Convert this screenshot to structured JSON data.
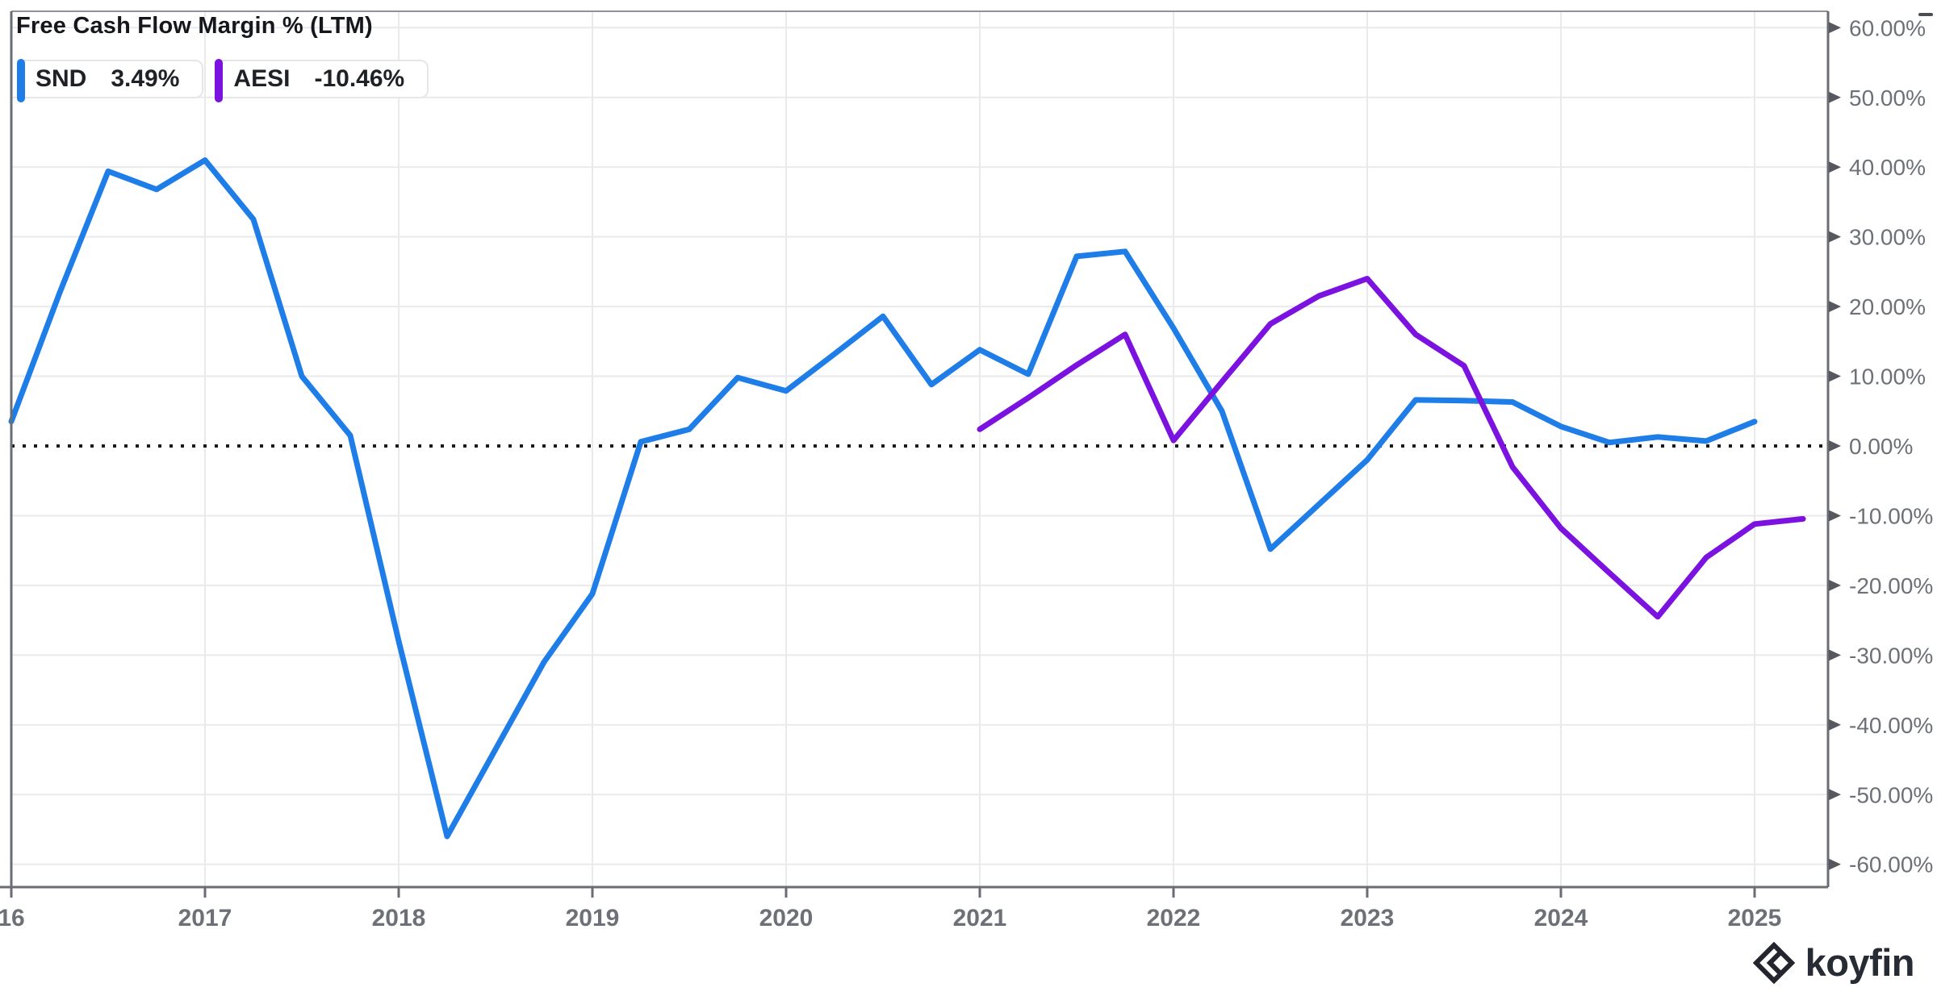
{
  "title": "Free Cash Flow Margin % (LTM)",
  "legend": [
    {
      "ticker": "SND",
      "value": "3.49%"
    },
    {
      "ticker": "AESI",
      "value": "-10.46%"
    }
  ],
  "watermark": {
    "text": "koyfin"
  },
  "colors": {
    "snd": "#1F7DE8",
    "aesi": "#7C12DF",
    "grid": "#e9eaec",
    "axis": "#6a6e74",
    "axis_text": "#6d7177",
    "zero_line": "#1a1a1a",
    "tick_arrow": "#55585e"
  },
  "chart_data": {
    "type": "line",
    "title": "Free Cash Flow Margin % (LTM)",
    "ylabel": "Free Cash Flow Margin %",
    "xlabel": "",
    "grid": true,
    "legend_position": "top-left",
    "zero_line_dotted": true,
    "y_axis": {
      "unit": "%",
      "min": -60,
      "max": 60,
      "step": 10,
      "ticks": [
        {
          "v": 60,
          "label": "60.00%"
        },
        {
          "v": 50,
          "label": "50.00%"
        },
        {
          "v": 40,
          "label": "40.00%"
        },
        {
          "v": 30,
          "label": "30.00%"
        },
        {
          "v": 20,
          "label": "20.00%"
        },
        {
          "v": 10,
          "label": "10.00%"
        },
        {
          "v": 0,
          "label": "0.00%"
        },
        {
          "v": -10,
          "label": "-10.00%"
        },
        {
          "v": -20,
          "label": "-20.00%"
        },
        {
          "v": -30,
          "label": "-30.00%"
        },
        {
          "v": -40,
          "label": "-40.00%"
        },
        {
          "v": -50,
          "label": "-50.00%"
        },
        {
          "v": -60,
          "label": "-60.00%"
        }
      ]
    },
    "x_axis": {
      "ticks": [
        {
          "x": 2016,
          "label": "16"
        },
        {
          "x": 2017,
          "label": "2017"
        },
        {
          "x": 2018,
          "label": "2018"
        },
        {
          "x": 2019,
          "label": "2019"
        },
        {
          "x": 2020,
          "label": "2020"
        },
        {
          "x": 2021,
          "label": "2021"
        },
        {
          "x": 2022,
          "label": "2022"
        },
        {
          "x": 2023,
          "label": "2023"
        },
        {
          "x": 2024,
          "label": "2024"
        },
        {
          "x": 2025,
          "label": "2025"
        }
      ]
    },
    "series": [
      {
        "name": "SND",
        "color": "#1F7DE8",
        "points": [
          [
            2016.0,
            3.5
          ],
          [
            2016.25,
            22.0
          ],
          [
            2016.5,
            39.4
          ],
          [
            2016.75,
            36.8
          ],
          [
            2017.0,
            41.0
          ],
          [
            2017.25,
            32.5
          ],
          [
            2017.5,
            10.0
          ],
          [
            2017.75,
            1.5
          ],
          [
            2018.0,
            -28.0
          ],
          [
            2018.25,
            -56.0
          ],
          [
            2018.5,
            -43.5
          ],
          [
            2018.75,
            -31.0
          ],
          [
            2019.0,
            -21.2
          ],
          [
            2019.25,
            0.6
          ],
          [
            2019.5,
            2.4
          ],
          [
            2019.75,
            9.8
          ],
          [
            2020.0,
            7.9
          ],
          [
            2020.25,
            13.2
          ],
          [
            2020.5,
            18.6
          ],
          [
            2020.75,
            8.8
          ],
          [
            2021.0,
            13.8
          ],
          [
            2021.25,
            10.3
          ],
          [
            2021.5,
            27.2
          ],
          [
            2021.75,
            27.9
          ],
          [
            2022.0,
            16.9
          ],
          [
            2022.25,
            5.0
          ],
          [
            2022.5,
            -14.8
          ],
          [
            2022.75,
            -8.4
          ],
          [
            2023.0,
            -2.0
          ],
          [
            2023.25,
            6.6
          ],
          [
            2023.5,
            6.5
          ],
          [
            2023.75,
            6.3
          ],
          [
            2024.0,
            2.8
          ],
          [
            2024.25,
            0.5
          ],
          [
            2024.5,
            1.3
          ],
          [
            2024.75,
            0.7
          ],
          [
            2025.0,
            3.49
          ]
        ]
      },
      {
        "name": "AESI",
        "color": "#7C12DF",
        "points": [
          [
            2021.0,
            2.4
          ],
          [
            2021.25,
            6.9
          ],
          [
            2021.5,
            11.6
          ],
          [
            2021.75,
            16.0
          ],
          [
            2022.0,
            0.8
          ],
          [
            2022.25,
            9.2
          ],
          [
            2022.5,
            17.5
          ],
          [
            2022.75,
            21.5
          ],
          [
            2023.0,
            24.0
          ],
          [
            2023.25,
            16.0
          ],
          [
            2023.5,
            11.5
          ],
          [
            2023.75,
            -3.0
          ],
          [
            2024.0,
            -11.8
          ],
          [
            2024.25,
            -18.2
          ],
          [
            2024.5,
            -24.5
          ],
          [
            2024.75,
            -16.0
          ],
          [
            2025.0,
            -11.2
          ],
          [
            2025.25,
            -10.46
          ]
        ]
      }
    ]
  }
}
